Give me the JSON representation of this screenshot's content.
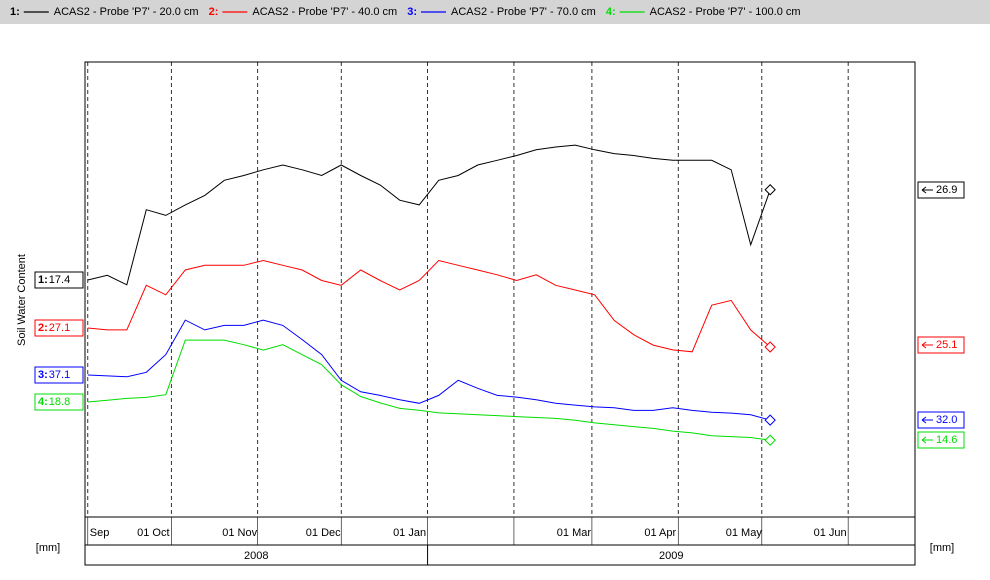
{
  "chart_data": {
    "type": "line",
    "ylabel": "Soil Water Content",
    "unit_left": "[mm]",
    "unit_right": "[mm]",
    "grid": true,
    "xlim": [
      "2008-08-31",
      "2009-06-25"
    ],
    "xticks": [
      {
        "value": "2008-09-01",
        "label": "Sep"
      },
      {
        "value": "2008-10-01",
        "label": "01 Oct"
      },
      {
        "value": "2008-11-01",
        "label": "01 Nov"
      },
      {
        "value": "2008-12-01",
        "label": "01 Dec"
      },
      {
        "value": "2009-01-01",
        "label": "01 Jan"
      },
      {
        "value": "2009-02-01",
        "label": null
      },
      {
        "value": "2009-03-01",
        "label": "01 Mar"
      },
      {
        "value": "2009-04-01",
        "label": "01 Apr"
      },
      {
        "value": "2009-05-01",
        "label": "01 May"
      },
      {
        "value": "2009-06-01",
        "label": "01 Jun"
      }
    ],
    "year_axis": [
      {
        "label": "2008",
        "start": "2008-08-31",
        "end": "2009-01-01"
      },
      {
        "label": "2009",
        "start": "2009-01-01",
        "end": "2009-06-25"
      }
    ],
    "x": [
      "2008-09-01",
      "2008-09-08",
      "2008-09-15",
      "2008-09-22",
      "2008-09-29",
      "2008-10-06",
      "2008-10-13",
      "2008-10-20",
      "2008-10-27",
      "2008-11-03",
      "2008-11-10",
      "2008-11-17",
      "2008-11-24",
      "2008-12-01",
      "2008-12-08",
      "2008-12-15",
      "2008-12-22",
      "2008-12-29",
      "2009-01-05",
      "2009-01-12",
      "2009-01-19",
      "2009-01-26",
      "2009-02-02",
      "2009-02-09",
      "2009-02-16",
      "2009-02-23",
      "2009-03-02",
      "2009-03-09",
      "2009-03-16",
      "2009-03-23",
      "2009-03-30",
      "2009-04-06",
      "2009-04-13",
      "2009-04-20",
      "2009-04-27",
      "2009-05-04"
    ],
    "series": [
      {
        "key": "1:",
        "name": "ACAS2 - Probe 'P7' - 20.0 cm",
        "color": "#000000",
        "values": [
          17.4,
          17.9,
          16.9,
          24.8,
          24.2,
          25.3,
          26.3,
          27.9,
          28.4,
          29.0,
          29.5,
          29.0,
          28.4,
          29.5,
          28.4,
          27.4,
          25.8,
          25.3,
          27.9,
          28.4,
          29.5,
          30.0,
          30.5,
          31.1,
          31.4,
          31.6,
          31.1,
          30.7,
          30.5,
          30.2,
          30.0,
          30.0,
          30.0,
          29.0,
          21.1,
          26.9
        ]
      },
      {
        "key": "2:",
        "name": "ACAS2 - Probe 'P7' - 40.0 cm",
        "color": "#ff0000",
        "values": [
          27.1,
          26.9,
          26.9,
          31.6,
          30.6,
          33.2,
          33.7,
          33.7,
          33.7,
          34.2,
          33.7,
          33.2,
          32.1,
          31.6,
          33.2,
          32.1,
          31.1,
          32.1,
          34.2,
          33.7,
          33.2,
          32.7,
          32.1,
          32.7,
          31.6,
          31.1,
          30.6,
          27.9,
          26.4,
          25.3,
          24.8,
          24.6,
          29.5,
          30.0,
          26.9,
          25.1
        ]
      },
      {
        "key": "3:",
        "name": "ACAS2 - Probe 'P7' - 70.0 cm",
        "color": "#0000ff",
        "values": [
          37.1,
          37.0,
          36.9,
          37.4,
          39.4,
          43.3,
          42.2,
          42.7,
          42.7,
          43.3,
          42.7,
          41.1,
          39.4,
          36.5,
          35.2,
          34.8,
          34.3,
          33.9,
          34.8,
          36.5,
          35.6,
          34.8,
          34.6,
          34.3,
          33.9,
          33.7,
          33.5,
          33.4,
          33.1,
          33.1,
          33.4,
          33.1,
          32.9,
          32.8,
          32.6,
          32
        ],
        "value_labels": [
          null,
          null,
          null,
          null,
          null,
          null,
          null,
          null,
          null,
          null,
          null,
          null,
          null,
          null,
          null,
          null,
          null,
          null,
          null,
          null,
          null,
          null,
          null,
          null,
          null,
          null,
          null,
          null,
          null,
          null,
          null,
          null,
          null,
          null,
          null,
          "32.0"
        ]
      },
      {
        "key": "4:",
        "name": "ACAS2 - Probe 'P7' - 100.0 cm",
        "color": "#00dd00",
        "values": [
          18.8,
          19.0,
          19.2,
          19.3,
          19.6,
          25.6,
          25.6,
          25.6,
          25.1,
          24.5,
          25.1,
          24.0,
          22.9,
          20.7,
          19.4,
          18.7,
          18.1,
          17.9,
          17.6,
          17.5,
          17.4,
          17.3,
          17.2,
          17.1,
          17.0,
          16.8,
          16.5,
          16.3,
          16.1,
          15.9,
          15.6,
          15.4,
          15.1,
          15.0,
          14.9,
          14.6
        ]
      }
    ]
  }
}
